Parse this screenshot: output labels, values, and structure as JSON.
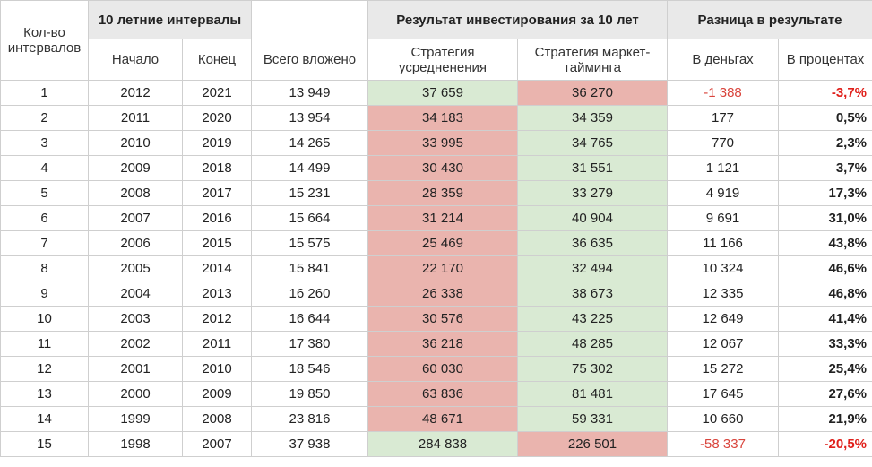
{
  "headers": {
    "count": "Кол-во интервалов",
    "intervals": "10 летние интервалы",
    "start": "Начало",
    "end": "Конец",
    "invested": "Всего вложено",
    "result_group": "Результат инвестирования за 10 лет",
    "strategy_avg": "Стратегия усредненения",
    "strategy_mt": "Стратегия маркет-тайминга",
    "diff_group": "Разница в результате",
    "diff_money": "В деньгах",
    "diff_pct": "В процентах"
  },
  "colors": {
    "header_grey": "#e9e9e9",
    "winner_green": "#d9ead3",
    "loser_red": "#eab4ae",
    "negative_text": "#d9443c"
  },
  "rows": [
    {
      "n": "1",
      "start": "2012",
      "end": "2021",
      "invested": "13 949",
      "avg": "37 659",
      "mt": "36 270",
      "diff": "-1 388",
      "pct": "-3,7%",
      "avg_win": true,
      "neg": true
    },
    {
      "n": "2",
      "start": "2011",
      "end": "2020",
      "invested": "13 954",
      "avg": "34 183",
      "mt": "34 359",
      "diff": "177",
      "pct": "0,5%",
      "avg_win": false,
      "neg": false
    },
    {
      "n": "3",
      "start": "2010",
      "end": "2019",
      "invested": "14 265",
      "avg": "33 995",
      "mt": "34 765",
      "diff": "770",
      "pct": "2,3%",
      "avg_win": false,
      "neg": false
    },
    {
      "n": "4",
      "start": "2009",
      "end": "2018",
      "invested": "14 499",
      "avg": "30 430",
      "mt": "31 551",
      "diff": "1 121",
      "pct": "3,7%",
      "avg_win": false,
      "neg": false
    },
    {
      "n": "5",
      "start": "2008",
      "end": "2017",
      "invested": "15 231",
      "avg": "28 359",
      "mt": "33 279",
      "diff": "4 919",
      "pct": "17,3%",
      "avg_win": false,
      "neg": false
    },
    {
      "n": "6",
      "start": "2007",
      "end": "2016",
      "invested": "15 664",
      "avg": "31 214",
      "mt": "40 904",
      "diff": "9 691",
      "pct": "31,0%",
      "avg_win": false,
      "neg": false
    },
    {
      "n": "7",
      "start": "2006",
      "end": "2015",
      "invested": "15 575",
      "avg": "25 469",
      "mt": "36 635",
      "diff": "11 166",
      "pct": "43,8%",
      "avg_win": false,
      "neg": false
    },
    {
      "n": "8",
      "start": "2005",
      "end": "2014",
      "invested": "15 841",
      "avg": "22 170",
      "mt": "32 494",
      "diff": "10 324",
      "pct": "46,6%",
      "avg_win": false,
      "neg": false
    },
    {
      "n": "9",
      "start": "2004",
      "end": "2013",
      "invested": "16 260",
      "avg": "26 338",
      "mt": "38 673",
      "diff": "12 335",
      "pct": "46,8%",
      "avg_win": false,
      "neg": false
    },
    {
      "n": "10",
      "start": "2003",
      "end": "2012",
      "invested": "16 644",
      "avg": "30 576",
      "mt": "43 225",
      "diff": "12 649",
      "pct": "41,4%",
      "avg_win": false,
      "neg": false
    },
    {
      "n": "11",
      "start": "2002",
      "end": "2011",
      "invested": "17 380",
      "avg": "36 218",
      "mt": "48 285",
      "diff": "12 067",
      "pct": "33,3%",
      "avg_win": false,
      "neg": false
    },
    {
      "n": "12",
      "start": "2001",
      "end": "2010",
      "invested": "18 546",
      "avg": "60 030",
      "mt": "75 302",
      "diff": "15 272",
      "pct": "25,4%",
      "avg_win": false,
      "neg": false
    },
    {
      "n": "13",
      "start": "2000",
      "end": "2009",
      "invested": "19 850",
      "avg": "63 836",
      "mt": "81 481",
      "diff": "17 645",
      "pct": "27,6%",
      "avg_win": false,
      "neg": false
    },
    {
      "n": "14",
      "start": "1999",
      "end": "2008",
      "invested": "23 816",
      "avg": "48 671",
      "mt": "59 331",
      "diff": "10 660",
      "pct": "21,9%",
      "avg_win": false,
      "neg": false
    },
    {
      "n": "15",
      "start": "1998",
      "end": "2007",
      "invested": "37 938",
      "avg": "284 838",
      "mt": "226 501",
      "diff": "-58 337",
      "pct": "-20,5%",
      "avg_win": true,
      "neg": true
    }
  ]
}
